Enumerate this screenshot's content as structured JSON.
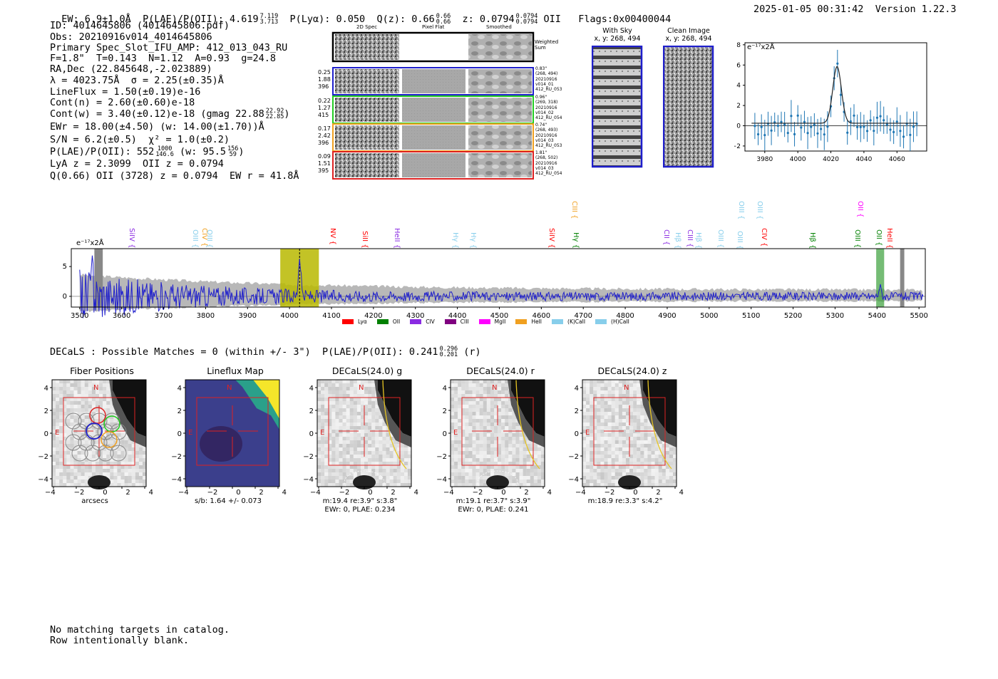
{
  "header": {
    "ew": "EW: 6.9±1.0Å",
    "plae_label": "P(LAE)/P(OII): 4.619",
    "plae_hi": "7.119",
    "plae_lo": "3.713",
    "plya": "P(Lyα): 0.050",
    "qz_label": "Q(z): 0.66",
    "qz_hi": "0.66",
    "qz_lo": "0.66",
    "z_label": "z: 0.0794",
    "z_hi": "0.0794",
    "z_lo": "0.0794",
    "z_line": "OII",
    "flags": "Flags:0x00400044",
    "timestamp": "2025-01-05 00:31:42",
    "version": "Version 1.22.3"
  },
  "info": {
    "id": "ID: 4014645806 (4014645806.pdf)",
    "obs": "Obs: 20210916v014_4014645806",
    "primary": "Primary Spec_Slot_IFU_AMP: 412_013_043_RU",
    "params": "F=1.8\"  T=0.143  N=1.12  A=0.93  g=24.8",
    "radec": "RA,Dec (22.845648,-2.023889)",
    "lambda": "λ = 4023.75Å  σ = 2.25(±0.35)Å",
    "lineflux": "LineFlux = 1.50(±0.19)e-16",
    "contn": "Cont(n) = 2.60(±0.60)e-18",
    "contw": "Cont(w) = 3.40(±0.12)e-18 (gmag 22.88",
    "contw_hi": "22.92",
    "contw_lo": "22.85",
    "contw_end": ")",
    "ewr": "EWr = 18.00(±4.50) (w: 14.00(±1.70))Å",
    "sn": "S/N = 6.2(±0.5)  χ² = 1.0(±0.2)",
    "plae": "P(LAE)/P(OII): 552",
    "plae_hi": "1000",
    "plae_lo": "146.6",
    "plae_w": " (w: 95.5",
    "plae_w_hi": "156",
    "plae_w_lo": "59",
    "plae_end": ")",
    "lya_z": "LyA z = 2.3099  OII z = 0.0794",
    "q_line": "Q(0.66) OII (3728) z = 0.0794  EW r = 41.8Å"
  },
  "cutouts": {
    "col_headers": [
      "2D Spec",
      "Pixel Flat",
      "Smoothed"
    ],
    "weighted_label": "Weighted Sum",
    "rows": [
      {
        "left": [
          "0.25",
          "1.88",
          "396"
        ],
        "right": [
          "0.83\"",
          "(268, 494)",
          "20210916",
          "v014_01",
          "412_RU_053"
        ],
        "color": "#1f1fcc"
      },
      {
        "left": [
          "0.22",
          "1.27",
          "415"
        ],
        "right": [
          "0.96\"",
          "(269, 318)",
          "20210916",
          "v014_02",
          "412_RU_054"
        ],
        "color": "#22cc22"
      },
      {
        "left": [
          "0.17",
          "2.42",
          "396"
        ],
        "right": [
          "0.74\"",
          "(268, 493)",
          "20210916",
          "v014_03",
          "412_RU_053"
        ],
        "color": "#f0a020"
      },
      {
        "left": [
          "0.09",
          "1.51",
          "395"
        ],
        "right": [
          "1.81\"",
          "(268, 502)",
          "20210916",
          "v014_03",
          "412_RU_054"
        ],
        "color": "#dd2222"
      }
    ],
    "with_sky_title": "With Sky",
    "with_sky_coords": "x, y: 268, 494",
    "clean_title": "Clean Image",
    "clean_coords": "x, y: 268, 494"
  },
  "zoom_plot": {
    "unit_label": "e⁻¹⁷x2Å",
    "y_ticks": [
      "8",
      "6",
      "4",
      "2",
      "0",
      "−2"
    ],
    "x_ticks": [
      "3980",
      "4000",
      "4020",
      "4040",
      "4060"
    ]
  },
  "full_spectrum": {
    "unit_label": "e⁻¹⁷x2Å",
    "y_ticks": [
      "5",
      "0"
    ],
    "x_ticks": [
      "3500",
      "3600",
      "3700",
      "3800",
      "3900",
      "4000",
      "4100",
      "4200",
      "4300",
      "4400",
      "4500",
      "4600",
      "4700",
      "4800",
      "4900",
      "5000",
      "5100",
      "5200",
      "5300",
      "5400",
      "5500"
    ],
    "line_labels": [
      {
        "text": "SiIV {",
        "color": "#8a2be2"
      },
      {
        "text": "OIII {",
        "color": "#87ceeb"
      },
      {
        "text": "CIV {",
        "color": "#f0a020"
      },
      {
        "text": "OIII {",
        "color": "#87ceeb"
      },
      {
        "text": "NV {",
        "color": "#ff0000"
      },
      {
        "text": "SiII {",
        "color": "#ff0000"
      },
      {
        "text": "HeII {",
        "color": "#8a2be2"
      },
      {
        "text": "Hγ {",
        "color": "#87ceeb"
      },
      {
        "text": "Hγ {",
        "color": "#87ceeb"
      },
      {
        "text": "SiIV {",
        "color": "#ff0000"
      },
      {
        "text": "CIII {",
        "color": "#f0a020"
      },
      {
        "text": "Hγ {",
        "color": "#008000"
      },
      {
        "text": "CII {",
        "color": "#8a2be2"
      },
      {
        "text": "Hβ {",
        "color": "#87ceeb"
      },
      {
        "text": "CIII {",
        "color": "#8a2be2"
      },
      {
        "text": "Hβ {",
        "color": "#87ceeb"
      },
      {
        "text": "OIII {",
        "color": "#87ceeb"
      },
      {
        "text": "OIII {",
        "color": "#87ceeb"
      },
      {
        "text": "OIII {",
        "color": "#87ceeb"
      },
      {
        "text": "CIV {",
        "color": "#ff0000"
      },
      {
        "text": "OIII {",
        "color": "#87ceeb"
      },
      {
        "text": "Hβ {",
        "color": "#008000"
      },
      {
        "text": "OIII {",
        "color": "#008000"
      },
      {
        "text": "OII {",
        "color": "#ff00ff"
      },
      {
        "text": "OII {",
        "color": "#008000"
      },
      {
        "text": "HeII {",
        "color": "#ff0000"
      }
    ],
    "legend": [
      {
        "label": "Lyα",
        "color": "#ff0000"
      },
      {
        "label": "OII",
        "color": "#008000"
      },
      {
        "label": "CIV",
        "color": "#8a2be2"
      },
      {
        "label": "CIII",
        "color": "#800080"
      },
      {
        "label": "MgII",
        "color": "#ff00ff"
      },
      {
        "label": "HeII",
        "color": "#f0a020"
      },
      {
        "label": "(K)CaII",
        "color": "#87ceeb"
      },
      {
        "label": "(H)CaII",
        "color": "#87ceeb"
      }
    ]
  },
  "decals": {
    "header": "DECaLS : Possible Matches = 0 (within +/- 3\")  P(LAE)/P(OII): 0.241",
    "header_hi": "0.296",
    "header_lo": "0.201",
    "header_end": "(r)",
    "panels": [
      {
        "title": "Fiber Positions",
        "caption1": "arcsecs",
        "caption2": ""
      },
      {
        "title": "Lineflux Map",
        "caption1": "s/b: 1.64 +/- 0.073",
        "caption2": ""
      },
      {
        "title": "DECaLS(24.0) g",
        "caption1": "m:19.4  re:3.9\"  s:3.8\"",
        "caption2": "EWr: 0, PLAE: 0.234"
      },
      {
        "title": "DECaLS(24.0) r",
        "caption1": "m:19.1  re:3.7\"  s:3.9\"",
        "caption2": "EWr: 0, PLAE: 0.241"
      },
      {
        "title": "DECaLS(24.0) z",
        "caption1": "m:18.9  re:3.3\"  s:4.2\"",
        "caption2": ""
      }
    ],
    "axis_ticks": [
      "4",
      "2",
      "0",
      "−2",
      "−4"
    ],
    "x_ticks": [
      "−4",
      "−2",
      "0",
      "2",
      "4"
    ],
    "n_label": "N",
    "e_label": "E"
  },
  "footer": {
    "line1": "No matching targets in catalog.",
    "line2": "Row intentionally blank."
  },
  "colors": {
    "spectrum_blue": "#1f1fcc",
    "band_yellow": "#b8b800",
    "band_green": "#3aa03a"
  }
}
